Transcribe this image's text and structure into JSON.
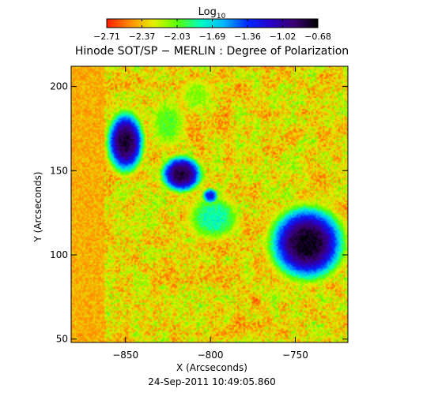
{
  "chart_data": {
    "type": "heatmap",
    "title": "Hinode SOT/SP − MERLIN : Degree of Polarization",
    "xlabel": "X (Arcseconds)",
    "ylabel": "Y (Arcseconds)",
    "timestamp": "24-Sep-2011 10:49:05.860",
    "colorbar": {
      "label_base": "Log",
      "label_sub": "10",
      "ticks": [
        "−2.71",
        "−2.37",
        "−2.03",
        "−1.69",
        "−1.36",
        "−1.02",
        "−0.68"
      ],
      "range": [
        -2.71,
        -0.68
      ]
    },
    "xlim": [
      -882,
      -719
    ],
    "ylim": [
      48,
      212
    ],
    "x_ticks": [
      {
        "value": -850,
        "label": "−850"
      },
      {
        "value": -800,
        "label": "−800"
      },
      {
        "value": -750,
        "label": "−750"
      }
    ],
    "y_ticks": [
      {
        "value": 50,
        "label": "50"
      },
      {
        "value": 100,
        "label": "100"
      },
      {
        "value": 150,
        "label": "150"
      },
      {
        "value": 200,
        "label": "200"
      }
    ],
    "data_left_edge_x": -862,
    "colormap": [
      "#ff1e00",
      "#ff8c00",
      "#e6f000",
      "#5aff00",
      "#00ffc0",
      "#00b4ff",
      "#0028ff",
      "#2800c8",
      "#3a0070",
      "#000000"
    ],
    "features": [
      {
        "x": -743,
        "y": 107,
        "rx": 18,
        "ry": 18,
        "peak": -0.72
      },
      {
        "x": -850,
        "y": 167,
        "rx": 9,
        "ry": 15,
        "peak": -0.78
      },
      {
        "x": -817,
        "y": 148,
        "rx": 10,
        "ry": 9,
        "peak": -0.8
      },
      {
        "x": -800,
        "y": 135,
        "rx": 4,
        "ry": 4,
        "peak": -1.25
      },
      {
        "x": -798,
        "y": 122,
        "rx": 14,
        "ry": 12,
        "peak": -1.8
      },
      {
        "x": -825,
        "y": 178,
        "rx": 10,
        "ry": 14,
        "peak": -2.0
      },
      {
        "x": -808,
        "y": 195,
        "rx": 10,
        "ry": 10,
        "peak": -2.1
      }
    ]
  }
}
